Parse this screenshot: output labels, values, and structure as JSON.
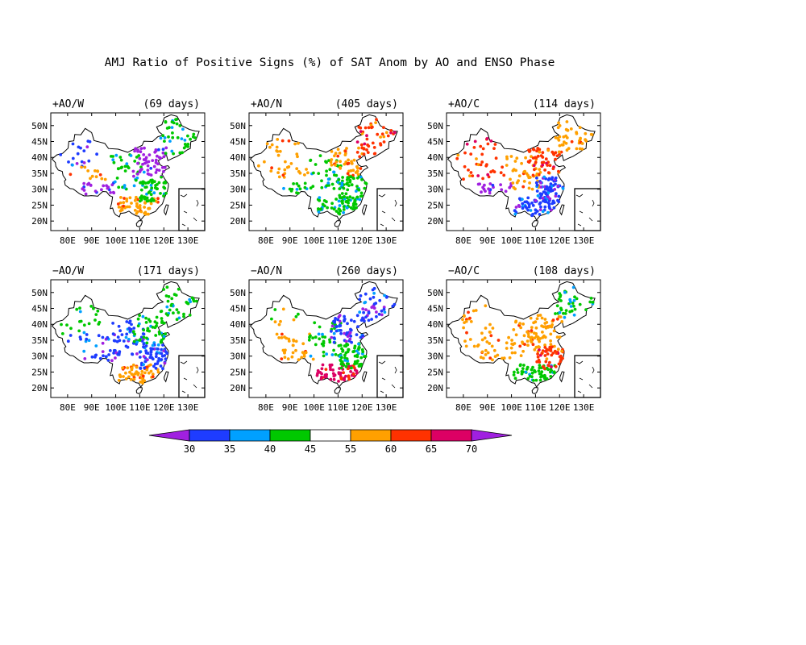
{
  "figure": {
    "title": "AMJ Ratio of Positive Signs (%) of SAT Anom by AO and ENSO Phase"
  },
  "lat_ticks": [
    "50N",
    "45N",
    "40N",
    "35N",
    "30N",
    "25N",
    "20N"
  ],
  "lon_ticks": [
    "80E",
    "90E",
    "100E",
    "110E",
    "120E",
    "130E"
  ],
  "panels": [
    {
      "label": "+AO/W",
      "days": "(69 days)",
      "regions": {
        "nw": "blue",
        "west": "orange",
        "tibet": "purple",
        "central": "green",
        "north": "purple",
        "northeast": "green",
        "south": "orange",
        "east": "green"
      }
    },
    {
      "label": "+AO/N",
      "days": "(405 days)",
      "regions": {
        "nw": "orange",
        "west": "orange",
        "tibet": "green",
        "central": "green",
        "north": "orange",
        "northeast": "red",
        "south": "green",
        "east": "green"
      }
    },
    {
      "label": "+AO/C",
      "days": "(114 days)",
      "regions": {
        "nw": "red",
        "west": "red",
        "tibet": "purple",
        "central": "orange",
        "north": "red",
        "northeast": "orange",
        "south": "blue",
        "east": "blue"
      }
    },
    {
      "label": "−AO/W",
      "days": "(171 days)",
      "regions": {
        "nw": "green",
        "west": "blue",
        "tibet": "blue",
        "central": "blue",
        "north": "green",
        "northeast": "green",
        "south": "orange",
        "east": "blue"
      }
    },
    {
      "label": "−AO/N",
      "days": "(260 days)",
      "regions": {
        "nw": "white",
        "west": "orange",
        "tibet": "orange",
        "central": "green",
        "north": "blue",
        "northeast": "blue",
        "south": "magenta",
        "east": "green"
      }
    },
    {
      "label": "−AO/C",
      "days": "(108 days)",
      "regions": {
        "nw": "orange",
        "west": "orange",
        "tibet": "orange",
        "central": "orange",
        "north": "orange",
        "northeast": "green",
        "south": "green",
        "east": "red"
      }
    }
  ],
  "colorbar": {
    "labels": [
      "30",
      "35",
      "40",
      "45",
      "55",
      "60",
      "65",
      "70"
    ],
    "colors": {
      "purple": "#a020e0",
      "blue": "#1e3cff",
      "cyan": "#00a0ff",
      "green": "#00c800",
      "white": "#ffffff",
      "orange": "#ffa000",
      "red": "#ff3200",
      "magenta": "#dc0064"
    },
    "order": [
      "purple",
      "blue",
      "cyan",
      "green",
      "white",
      "orange",
      "red",
      "magenta",
      "purple"
    ]
  }
}
